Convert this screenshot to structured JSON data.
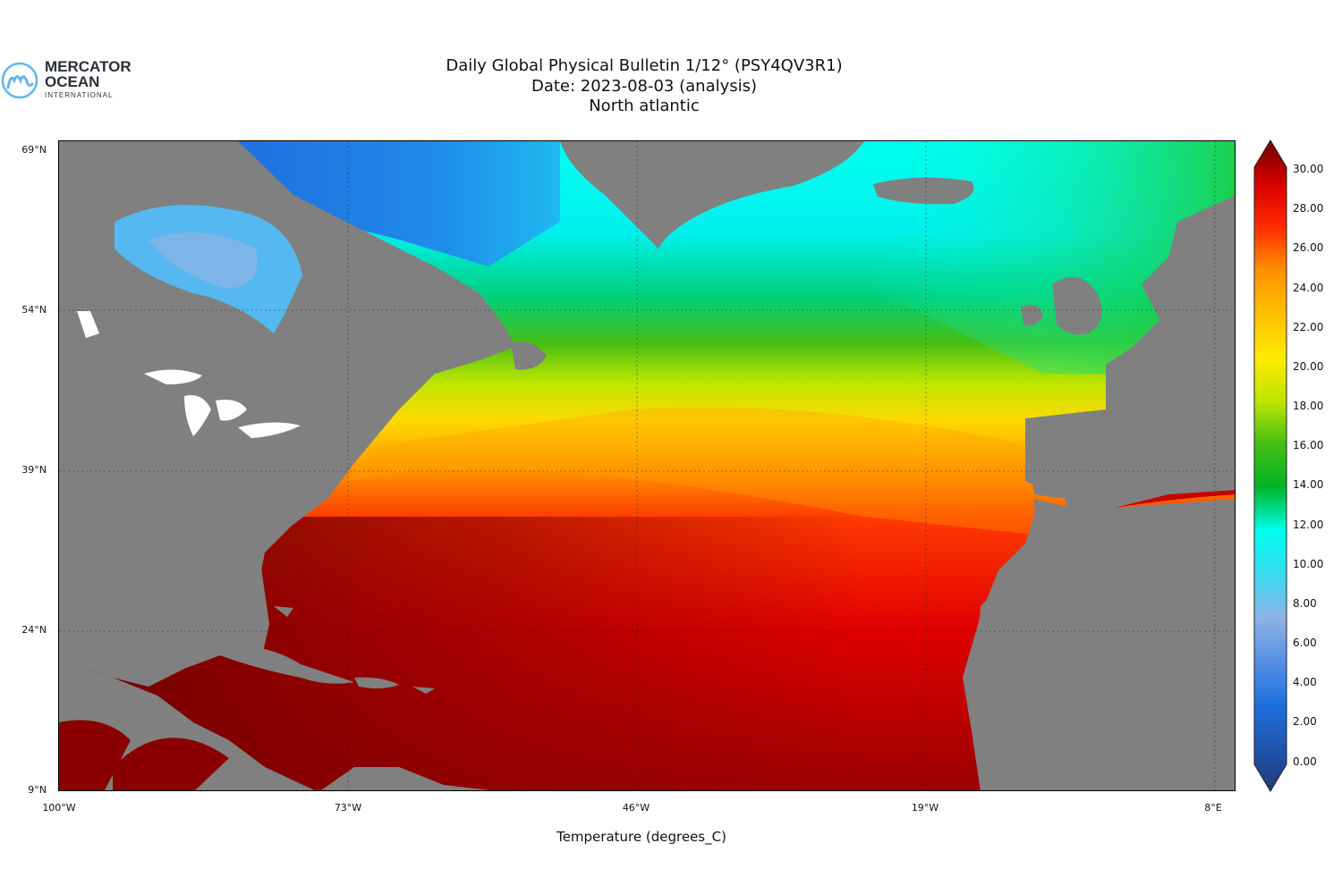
{
  "logo": {
    "name": "MERCATOR",
    "name2": "OCEAN",
    "sub": "INTERNATIONAL",
    "mark": "m"
  },
  "title": {
    "line1": "Daily Global Physical Bulletin 1/12° (PSY4QV3R1)",
    "line2": "Date: 2023-08-03 (analysis)",
    "line3": "North atlantic"
  },
  "axes": {
    "lat_ticks": [
      "69°N",
      "54°N",
      "39°N",
      "24°N",
      "9°N"
    ],
    "lon_ticks": [
      "100°W",
      "73°W",
      "46°W",
      "19°W",
      "8°E"
    ],
    "xlabel": "Temperature (degrees_C)"
  },
  "colorbar": {
    "ticks": [
      "30.00",
      "28.00",
      "26.00",
      "24.00",
      "22.00",
      "20.00",
      "18.00",
      "16.00",
      "14.00",
      "12.00",
      "10.00",
      "8.00",
      "6.00",
      "4.00",
      "2.00",
      "0.00"
    ],
    "range": [
      0,
      30
    ],
    "colors": {
      "c0": "#213a7a",
      "c4": "#1f6fe0",
      "c8": "#8fb3e6",
      "c10": "#39d9f0",
      "c12": "#00ffee",
      "c14": "#00b428",
      "c16": "#46be14",
      "c18": "#bde600",
      "c20": "#ffea00",
      "c22": "#ffbf00",
      "c24": "#ff9100",
      "c26": "#ff2b00",
      "c28": "#d80000",
      "c30": "#6e0000"
    }
  },
  "colors": {
    "land": "#808080",
    "lakes": "#ffffff"
  }
}
